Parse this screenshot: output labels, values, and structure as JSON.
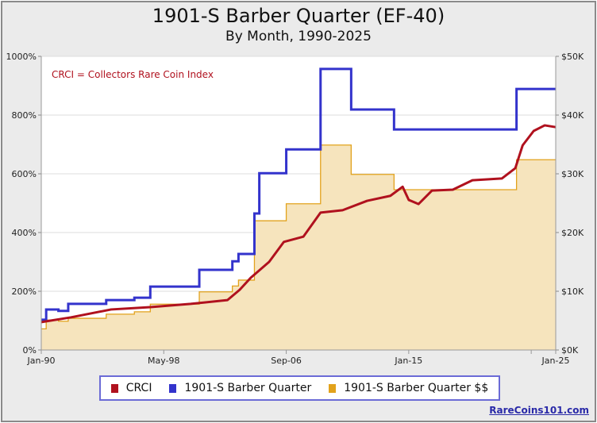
{
  "chart_data": {
    "type": "line",
    "title": "1901-S Barber Quarter (EF-40)",
    "subtitle": "By Month, 1990-2025",
    "annotation": "CRCI = Collectors Rare Coin Index",
    "x_ticks": [
      "Jan-90",
      "May-98",
      "Sep-06",
      "Jan-15",
      "Jan-25"
    ],
    "x_range": [
      "1990-01",
      "2025-01"
    ],
    "y_left": {
      "range": [
        0,
        1000
      ],
      "ticks": [
        "0%",
        "200%",
        "400%",
        "600%",
        "800%",
        "1000%"
      ]
    },
    "y_right": {
      "range": [
        0,
        50000
      ],
      "ticks": [
        "$0K",
        "$10K",
        "$20K",
        "$30K",
        "$40K",
        "$50K"
      ]
    },
    "grid": true,
    "legend_position": "bottom",
    "colors": {
      "crci": "#b0111e",
      "quarter": "#3333cc",
      "dollars": "#e2a21c",
      "dollars_fill": "#f6e4bd"
    },
    "series": [
      {
        "name": "CRCI",
        "axis": "left",
        "style": "line",
        "points": [
          [
            "1990-01",
            95
          ],
          [
            "1992-01",
            111
          ],
          [
            "1994-10",
            138
          ],
          [
            "1997-06",
            146
          ],
          [
            "2000-03",
            157
          ],
          [
            "2002-09",
            170
          ],
          [
            "2003-07",
            205
          ],
          [
            "2004-04",
            246
          ],
          [
            "2005-07",
            300
          ],
          [
            "2006-07",
            368
          ],
          [
            "2007-11",
            386
          ],
          [
            "2009-01",
            468
          ],
          [
            "2010-07",
            476
          ],
          [
            "2012-03",
            508
          ],
          [
            "2013-10",
            525
          ],
          [
            "2014-08",
            556
          ],
          [
            "2015-01",
            511
          ],
          [
            "2015-09",
            497
          ],
          [
            "2016-08",
            543
          ],
          [
            "2018-01",
            546
          ],
          [
            "2019-05",
            578
          ],
          [
            "2021-05",
            584
          ],
          [
            "2022-04",
            619
          ],
          [
            "2022-10",
            697
          ],
          [
            "2023-07",
            746
          ],
          [
            "2024-04",
            765
          ],
          [
            "2025-01",
            759
          ]
        ]
      },
      {
        "name": "1901-S Barber Quarter",
        "axis": "left",
        "style": "step",
        "points": [
          [
            "1990-01",
            103
          ],
          [
            "1990-05",
            138
          ],
          [
            "1991-03",
            133
          ],
          [
            "1991-11",
            157
          ],
          [
            "1994-06",
            170
          ],
          [
            "1996-05",
            178
          ],
          [
            "1997-06",
            216
          ],
          [
            "2000-10",
            273
          ],
          [
            "2003-01",
            302
          ],
          [
            "2003-06",
            327
          ],
          [
            "2004-07",
            465
          ],
          [
            "2004-11",
            602
          ],
          [
            "2006-09",
            683
          ],
          [
            "2009-01",
            957
          ],
          [
            "2011-02",
            819
          ],
          [
            "2014-01",
            751
          ],
          [
            "2022-05",
            889
          ],
          [
            "2025-01",
            889
          ]
        ]
      },
      {
        "name": "1901-S Barber Quarter $$",
        "axis": "right",
        "style": "step-area",
        "points": [
          [
            "1990-01",
            3600
          ],
          [
            "1990-05",
            5100
          ],
          [
            "1991-03",
            4900
          ],
          [
            "1991-11",
            5400
          ],
          [
            "1994-06",
            6100
          ],
          [
            "1996-05",
            6500
          ],
          [
            "1997-06",
            7800
          ],
          [
            "2000-10",
            9900
          ],
          [
            "2003-01",
            10900
          ],
          [
            "2003-06",
            11900
          ],
          [
            "2004-07",
            22000
          ],
          [
            "2006-09",
            24900
          ],
          [
            "2009-01",
            34900
          ],
          [
            "2011-02",
            29900
          ],
          [
            "2014-01",
            27300
          ],
          [
            "2022-05",
            32400
          ],
          [
            "2025-01",
            32400
          ]
        ]
      }
    ]
  },
  "credit": "RareCoins101.com"
}
